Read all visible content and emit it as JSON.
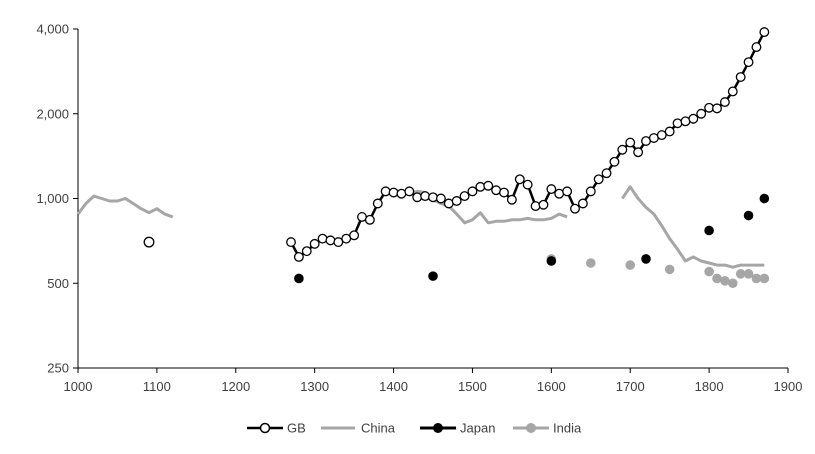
{
  "chart_data": {
    "type": "line",
    "title": "",
    "xlabel": "",
    "ylabel": "",
    "y_scale": "log",
    "xlim": [
      1000,
      1900
    ],
    "ylim": [
      250,
      4000
    ],
    "x_ticks": [
      1000,
      1100,
      1200,
      1300,
      1400,
      1500,
      1600,
      1700,
      1800,
      1900
    ],
    "y_ticks": [
      250,
      500,
      1000,
      2000,
      4000
    ],
    "y_tick_labels": [
      "250",
      "500",
      "1,000",
      "2,000",
      "4,000"
    ],
    "grid": false,
    "legend_position": "bottom",
    "series": [
      {
        "name": "GB",
        "style": "line-open-markers",
        "color": "#000000",
        "points": [
          [
            1270,
            700
          ],
          [
            1280,
            620
          ],
          [
            1290,
            650
          ],
          [
            1300,
            690
          ],
          [
            1310,
            720
          ],
          [
            1320,
            710
          ],
          [
            1330,
            700
          ],
          [
            1340,
            720
          ],
          [
            1350,
            740
          ],
          [
            1360,
            860
          ],
          [
            1370,
            840
          ],
          [
            1380,
            960
          ],
          [
            1390,
            1060
          ],
          [
            1400,
            1050
          ],
          [
            1410,
            1040
          ],
          [
            1420,
            1060
          ],
          [
            1430,
            1010
          ],
          [
            1440,
            1020
          ],
          [
            1450,
            1010
          ],
          [
            1460,
            1000
          ],
          [
            1470,
            960
          ],
          [
            1480,
            980
          ],
          [
            1490,
            1020
          ],
          [
            1500,
            1060
          ],
          [
            1510,
            1100
          ],
          [
            1520,
            1110
          ],
          [
            1530,
            1070
          ],
          [
            1540,
            1050
          ],
          [
            1550,
            990
          ],
          [
            1560,
            1170
          ],
          [
            1570,
            1120
          ],
          [
            1580,
            940
          ],
          [
            1590,
            950
          ],
          [
            1600,
            1080
          ],
          [
            1610,
            1040
          ],
          [
            1620,
            1060
          ],
          [
            1630,
            920
          ],
          [
            1640,
            960
          ],
          [
            1650,
            1060
          ],
          [
            1660,
            1170
          ],
          [
            1670,
            1230
          ],
          [
            1680,
            1350
          ],
          [
            1690,
            1490
          ],
          [
            1700,
            1580
          ],
          [
            1710,
            1460
          ],
          [
            1720,
            1600
          ],
          [
            1730,
            1640
          ],
          [
            1740,
            1680
          ],
          [
            1750,
            1730
          ],
          [
            1760,
            1850
          ],
          [
            1770,
            1880
          ],
          [
            1780,
            1920
          ],
          [
            1790,
            2000
          ],
          [
            1800,
            2100
          ],
          [
            1810,
            2090
          ],
          [
            1820,
            2200
          ],
          [
            1830,
            2400
          ],
          [
            1840,
            2700
          ],
          [
            1850,
            3050
          ],
          [
            1860,
            3450
          ],
          [
            1870,
            3900
          ]
        ]
      },
      {
        "name": "China",
        "style": "line",
        "color": "#a6a6a6",
        "segments": [
          [
            [
              1000,
              880
            ],
            [
              1010,
              960
            ],
            [
              1020,
              1020
            ],
            [
              1030,
              1000
            ],
            [
              1040,
              980
            ],
            [
              1050,
              980
            ],
            [
              1060,
              1000
            ],
            [
              1070,
              960
            ],
            [
              1080,
              920
            ],
            [
              1090,
              890
            ],
            [
              1100,
              920
            ],
            [
              1110,
              880
            ],
            [
              1120,
              860
            ]
          ],
          [
            [
              1400,
              1020
            ],
            [
              1410,
              1040
            ],
            [
              1420,
              1040
            ],
            [
              1430,
              1060
            ],
            [
              1440,
              1050
            ],
            [
              1450,
              990
            ],
            [
              1460,
              960
            ],
            [
              1470,
              940
            ],
            [
              1480,
              880
            ],
            [
              1490,
              820
            ],
            [
              1500,
              840
            ],
            [
              1510,
              890
            ],
            [
              1520,
              820
            ],
            [
              1530,
              830
            ],
            [
              1540,
              830
            ],
            [
              1550,
              840
            ],
            [
              1560,
              840
            ],
            [
              1570,
              850
            ],
            [
              1580,
              840
            ],
            [
              1590,
              840
            ],
            [
              1600,
              850
            ],
            [
              1610,
              880
            ],
            [
              1620,
              860
            ]
          ],
          [
            [
              1690,
              1000
            ],
            [
              1700,
              1100
            ],
            [
              1710,
              1000
            ],
            [
              1720,
              930
            ],
            [
              1730,
              880
            ],
            [
              1740,
              800
            ],
            [
              1750,
              720
            ],
            [
              1760,
              660
            ],
            [
              1770,
              600
            ],
            [
              1780,
              620
            ],
            [
              1790,
              600
            ],
            [
              1800,
              590
            ],
            [
              1810,
              580
            ],
            [
              1820,
              580
            ],
            [
              1830,
              570
            ],
            [
              1840,
              580
            ],
            [
              1850,
              580
            ],
            [
              1860,
              580
            ],
            [
              1870,
              580
            ]
          ]
        ]
      },
      {
        "name": "Japan",
        "style": "markers",
        "color": "#000000",
        "points": [
          [
            1280,
            520
          ],
          [
            1450,
            530
          ],
          [
            1600,
            600
          ],
          [
            1720,
            610
          ],
          [
            1800,
            770
          ],
          [
            1850,
            870
          ],
          [
            1870,
            1000
          ]
        ]
      },
      {
        "name": "India",
        "style": "markers",
        "color": "#a6a6a6",
        "points": [
          [
            1600,
            610
          ],
          [
            1650,
            590
          ],
          [
            1700,
            580
          ],
          [
            1750,
            560
          ],
          [
            1800,
            550
          ],
          [
            1810,
            520
          ],
          [
            1820,
            510
          ],
          [
            1830,
            500
          ],
          [
            1840,
            540
          ],
          [
            1850,
            540
          ],
          [
            1860,
            520
          ],
          [
            1870,
            520
          ]
        ]
      },
      {
        "name": "",
        "style": "markers-only",
        "color": "#000000",
        "hollow": true,
        "points": [
          [
            1090,
            700
          ]
        ]
      }
    ]
  }
}
